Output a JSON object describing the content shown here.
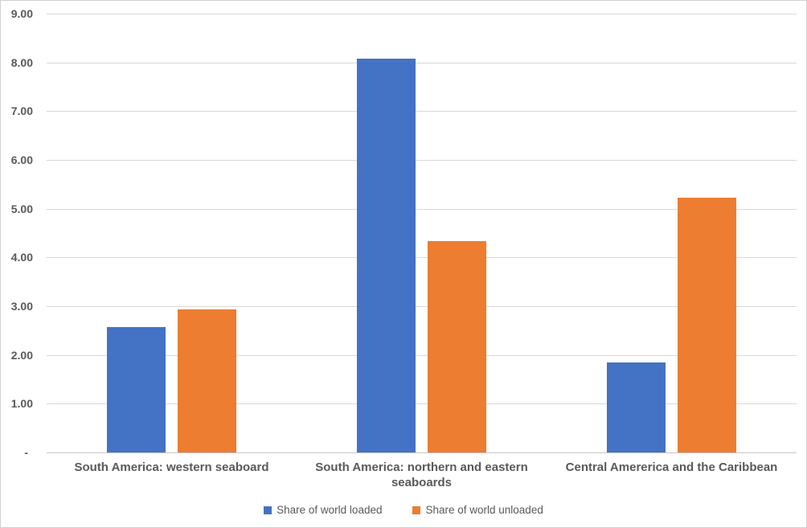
{
  "chart_data": {
    "type": "bar",
    "title": "",
    "categories": [
      "South America: western seaboard",
      "South America: northern and eastern seaboards",
      "Central Amererica and the Caribbean"
    ],
    "series": [
      {
        "name": "Share of world loaded",
        "color": "#4472C4",
        "values": [
          2.58,
          8.08,
          1.84
        ]
      },
      {
        "name": "Share of world unloaded",
        "color": "#ED7D31",
        "values": [
          2.94,
          4.33,
          5.22
        ]
      }
    ],
    "xlabel": "",
    "ylabel": "",
    "ylim": [
      0,
      9
    ],
    "y_tick_step": 1,
    "y_tick_labels": [
      "-",
      "1.00",
      "2.00",
      "3.00",
      "4.00",
      "5.00",
      "6.00",
      "7.00",
      "8.00",
      "9.00"
    ],
    "grid": true,
    "legend_position": "bottom-center"
  }
}
